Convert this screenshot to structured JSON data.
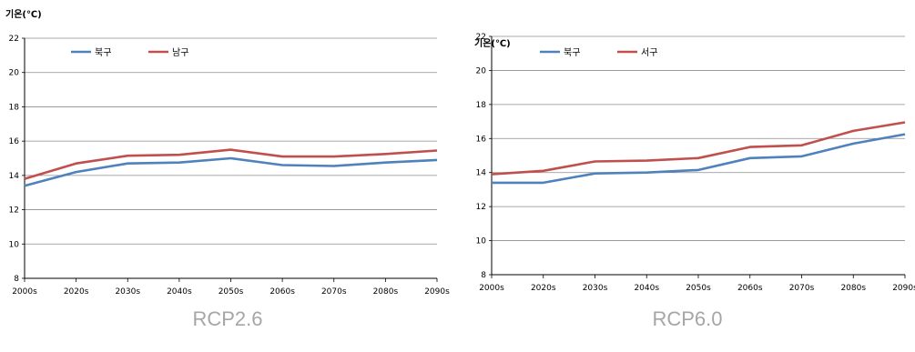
{
  "chart_data": [
    {
      "type": "line",
      "caption": "RCP2.6",
      "ylabel": "기온(℃)",
      "categories": [
        "2000s",
        "2020s",
        "2030s",
        "2040s",
        "2050s",
        "2060s",
        "2070s",
        "2080s",
        "2090s"
      ],
      "ylim": [
        8,
        22
      ],
      "yticks": [
        8,
        10,
        12,
        14,
        16,
        18,
        20,
        22
      ],
      "grid": true,
      "legend_position": "top-left",
      "series": [
        {
          "name": "북구",
          "color": "#4f81bd",
          "values": [
            13.4,
            14.2,
            14.7,
            14.75,
            15.0,
            14.6,
            14.55,
            14.75,
            14.9
          ]
        },
        {
          "name": "남구",
          "color": "#c0504d",
          "values": [
            13.8,
            14.7,
            15.15,
            15.2,
            15.5,
            15.1,
            15.1,
            15.25,
            15.45
          ]
        }
      ]
    },
    {
      "type": "line",
      "caption": "RCP6.0",
      "ylabel": "기온(℃)",
      "categories": [
        "2000s",
        "2020s",
        "2030s",
        "2040s",
        "2050s",
        "2060s",
        "2070s",
        "2080s",
        "2090s"
      ],
      "ylim": [
        8,
        22
      ],
      "yticks": [
        8,
        10,
        12,
        14,
        16,
        18,
        20,
        22
      ],
      "grid": true,
      "legend_position": "top-left",
      "series": [
        {
          "name": "북구",
          "color": "#4f81bd",
          "values": [
            13.4,
            13.4,
            13.95,
            14.0,
            14.15,
            14.85,
            14.95,
            15.7,
            16.25
          ]
        },
        {
          "name": "서구",
          "color": "#c0504d",
          "values": [
            13.9,
            14.1,
            14.65,
            14.7,
            14.85,
            15.5,
            15.6,
            16.45,
            16.95
          ]
        }
      ]
    }
  ]
}
